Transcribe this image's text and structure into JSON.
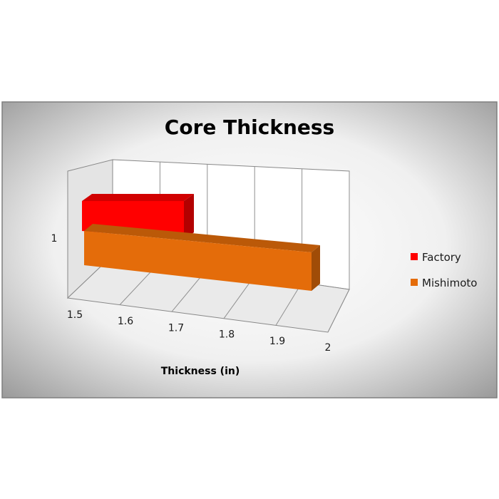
{
  "chart_data": {
    "type": "bar",
    "orientation": "horizontal-3d",
    "title": "Core Thickness",
    "xlabel": "Thickness (in)",
    "ylabel": "",
    "category_label": "1",
    "xlim": [
      1.5,
      2
    ],
    "x_ticks": [
      "1.5",
      "1.6",
      "1.7",
      "1.8",
      "1.9",
      "2"
    ],
    "grid": true,
    "legend_position": "right",
    "series": [
      {
        "name": "Factory",
        "value": 1.75,
        "color": "#ff0000"
      },
      {
        "name": "Mishimoto",
        "value": 2.0,
        "color": "#e46c0a"
      }
    ]
  }
}
